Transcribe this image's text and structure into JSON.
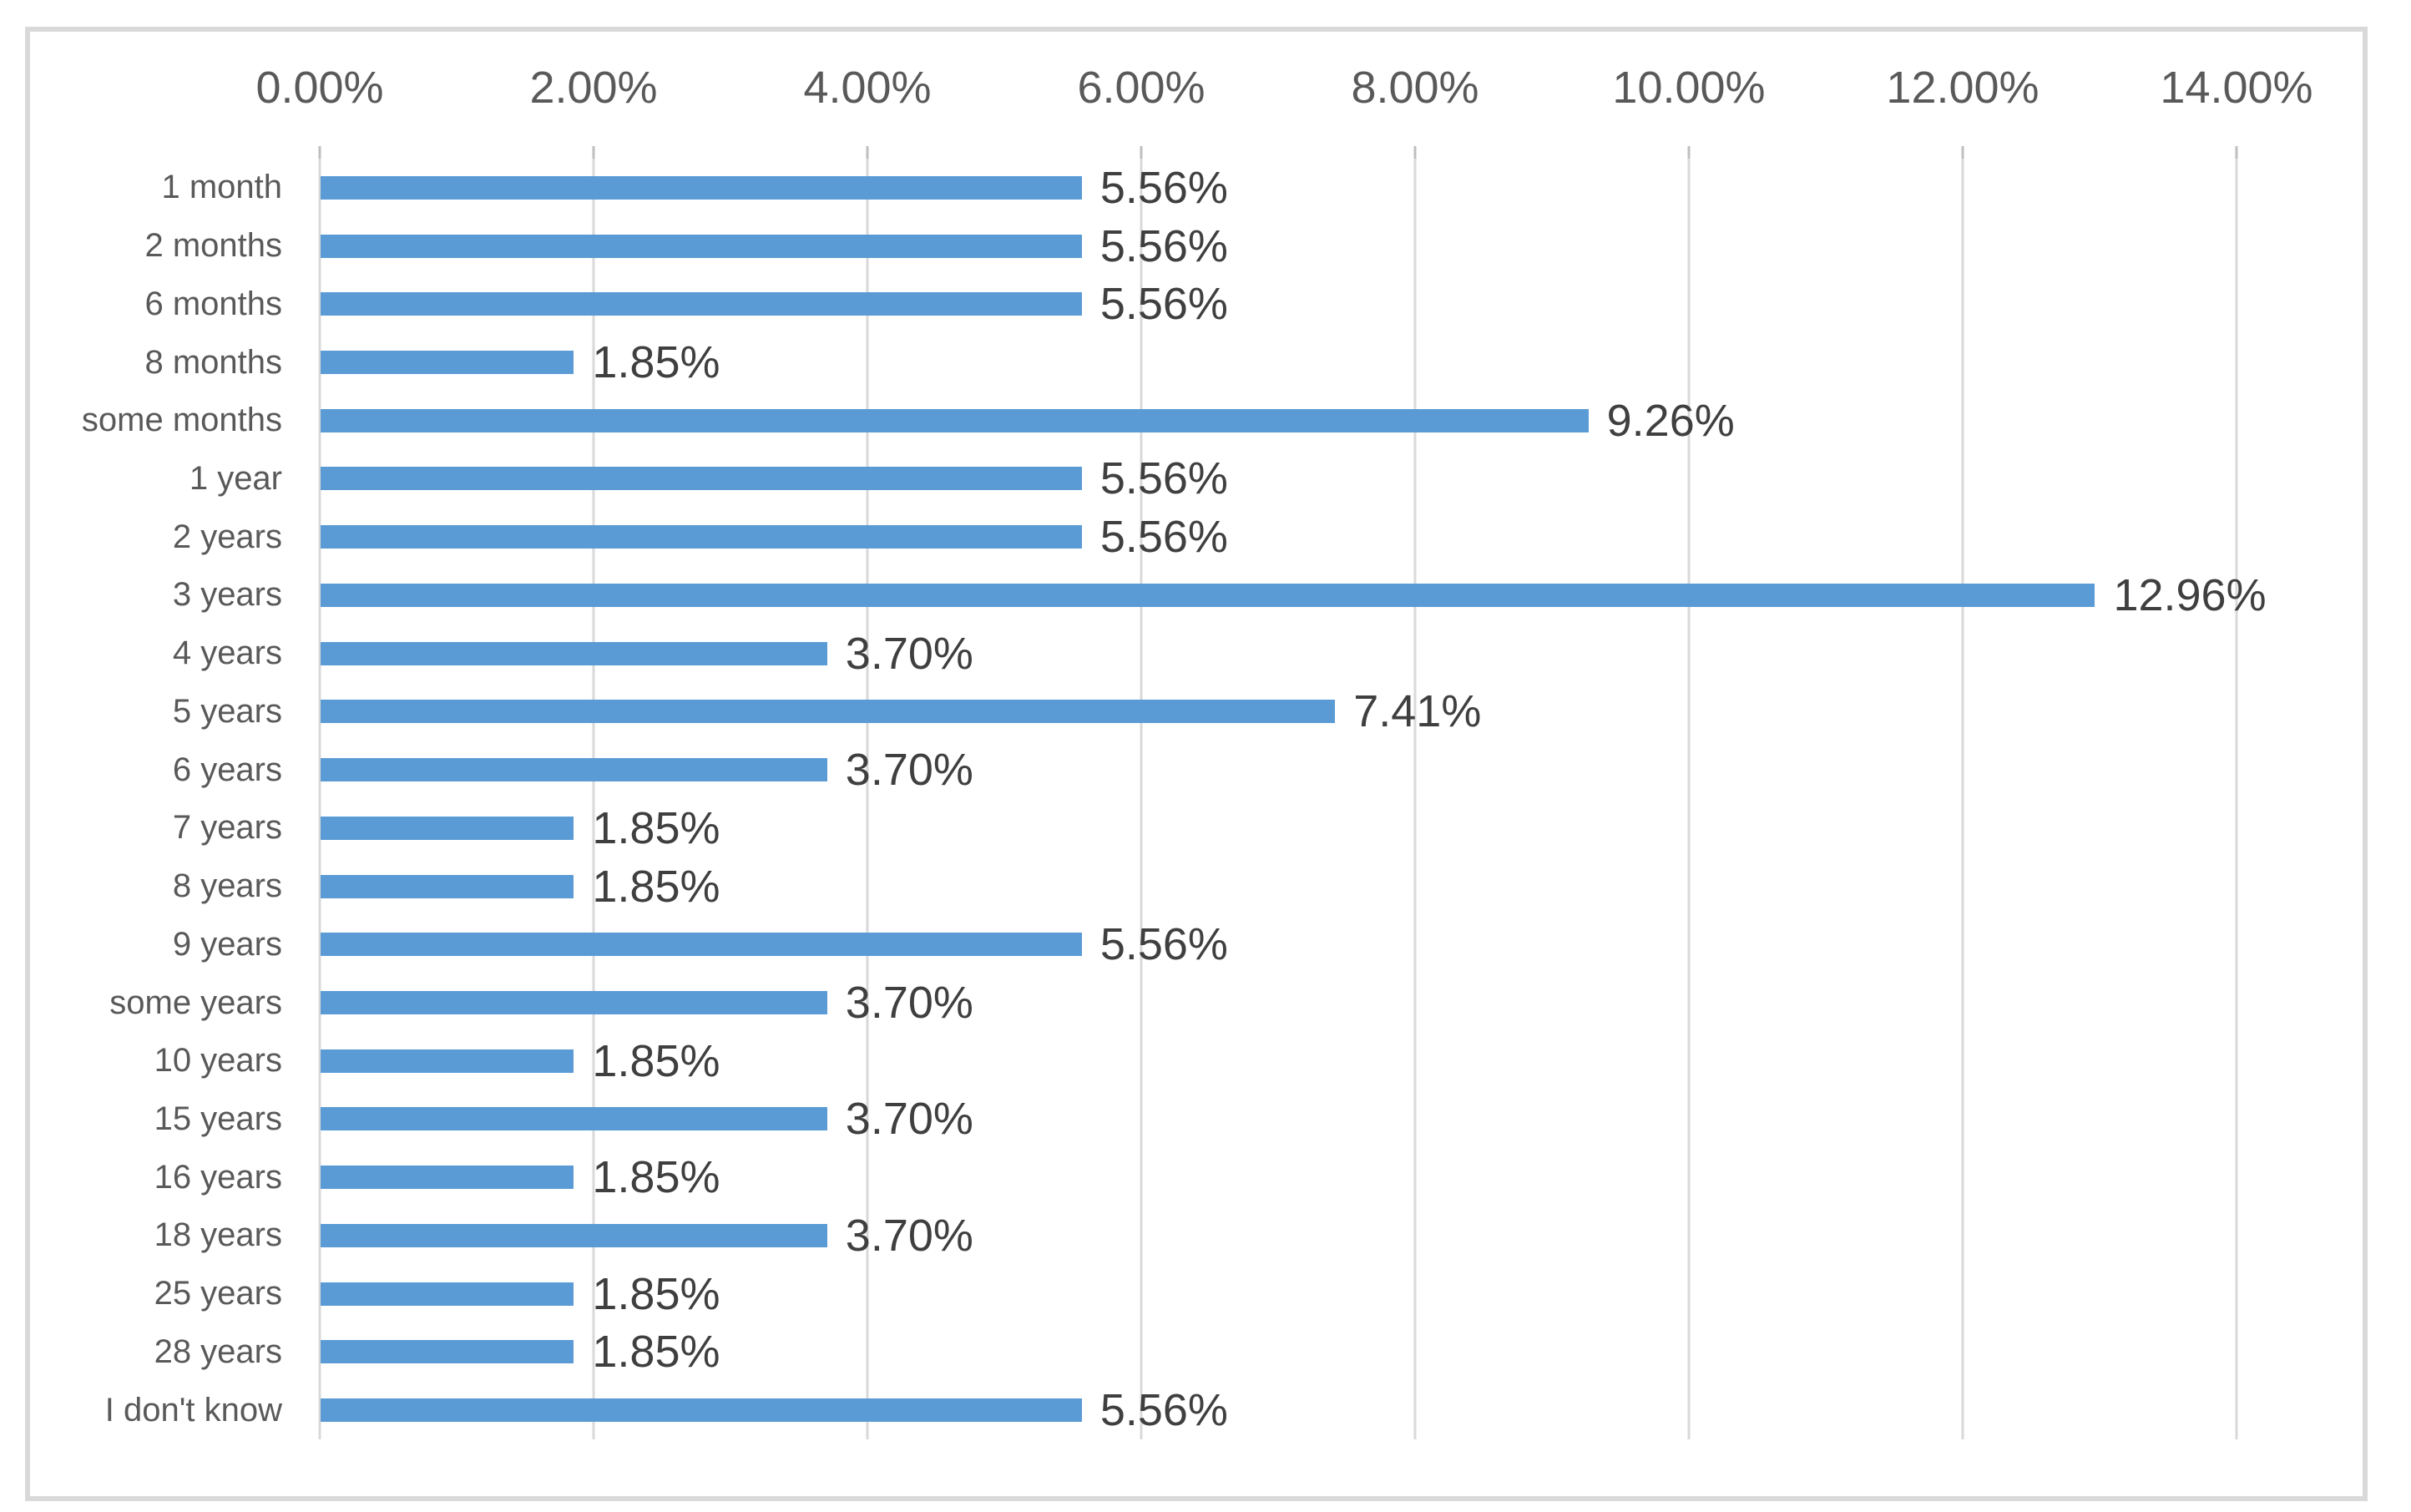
{
  "chart_data": {
    "type": "bar",
    "orientation": "horizontal",
    "title": "",
    "legend": "none",
    "grid": true,
    "categories": [
      "1 month",
      "2 months",
      "6 months",
      "8 months",
      "some months",
      "1 year",
      "2 years",
      "3 years",
      "4 years",
      "5 years",
      "6 years",
      "7 years",
      "8 years",
      "9 years",
      "some years",
      "10 years",
      "15 years",
      "16 years",
      "18 years",
      "25 years",
      "28 years",
      "I don't know"
    ],
    "values": [
      5.56,
      5.56,
      5.56,
      1.85,
      9.26,
      5.56,
      5.56,
      12.96,
      3.7,
      7.41,
      3.7,
      1.85,
      1.85,
      5.56,
      3.7,
      1.85,
      3.7,
      1.85,
      3.7,
      1.85,
      1.85,
      5.56
    ],
    "data_labels": [
      "5.56%",
      "5.56%",
      "5.56%",
      "1.85%",
      "9.26%",
      "5.56%",
      "5.56%",
      "12.96%",
      "3.70%",
      "7.41%",
      "3.70%",
      "1.85%",
      "1.85%",
      "5.56%",
      "3.70%",
      "1.85%",
      "3.70%",
      "1.85%",
      "3.70%",
      "1.85%",
      "1.85%",
      "5.56%"
    ],
    "x_axis": {
      "position": "top",
      "min": 0,
      "max": 14,
      "step": 2,
      "tick_labels": [
        "0.00%",
        "2.00%",
        "4.00%",
        "6.00%",
        "8.00%",
        "10.00%",
        "12.00%",
        "14.00%"
      ]
    },
    "colors": {
      "bar": "#5B9BD5",
      "gridline": "#D9D9D9",
      "frame_border": "#D9D9D9",
      "axis_text": "#595959",
      "category_text": "#595959",
      "data_label_text": "#3F3F3F",
      "background": "#FFFFFF"
    }
  }
}
